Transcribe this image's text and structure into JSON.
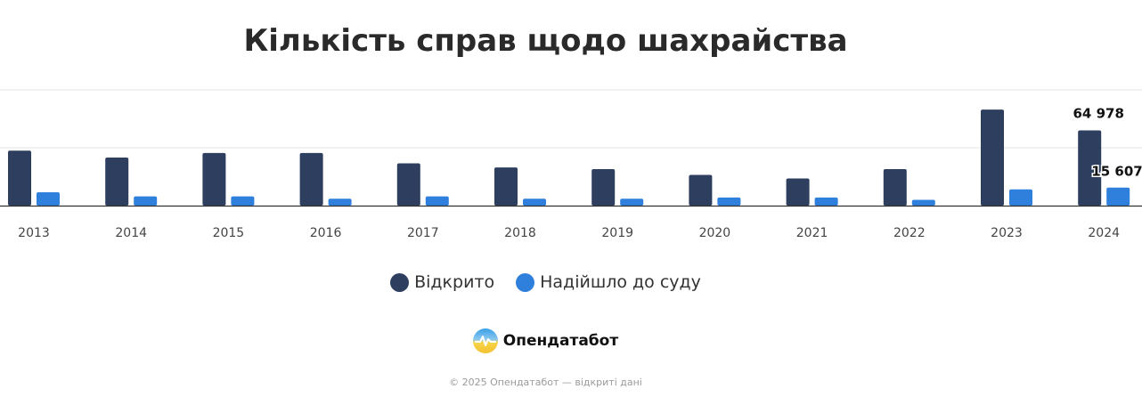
{
  "chart_data": {
    "type": "bar",
    "title": "Кількість справ щодо шахрайства",
    "categories": [
      "2013",
      "2014",
      "2015",
      "2016",
      "2017",
      "2018",
      "2019",
      "2020",
      "2021",
      "2022",
      "2023",
      "2024"
    ],
    "series": [
      {
        "name": "Відкрито",
        "color": "#2e3e5e",
        "values": [
          47500,
          41500,
          45500,
          45500,
          36500,
          33000,
          31500,
          26500,
          23500,
          31500,
          83000,
          64978
        ]
      },
      {
        "name": "Надійшло до суду",
        "color": "#2f7fdc",
        "values": [
          11500,
          8000,
          8000,
          6000,
          8000,
          6000,
          6000,
          7000,
          7000,
          5000,
          14000,
          15607
        ]
      }
    ],
    "data_labels": [
      {
        "category": "2024",
        "series": "Відкрито",
        "text": "64 978"
      },
      {
        "category": "2024",
        "series": "Надійшло до суду",
        "text": "15 607"
      }
    ],
    "ylim": [
      0,
      100000
    ],
    "grid": true,
    "legend_position": "bottom"
  },
  "brand": {
    "name": "Опендатабот",
    "logo_icon": "opendatabot-logo-icon"
  },
  "footer": {
    "text": "© 2025 Опендатабот — відкриті дані"
  }
}
